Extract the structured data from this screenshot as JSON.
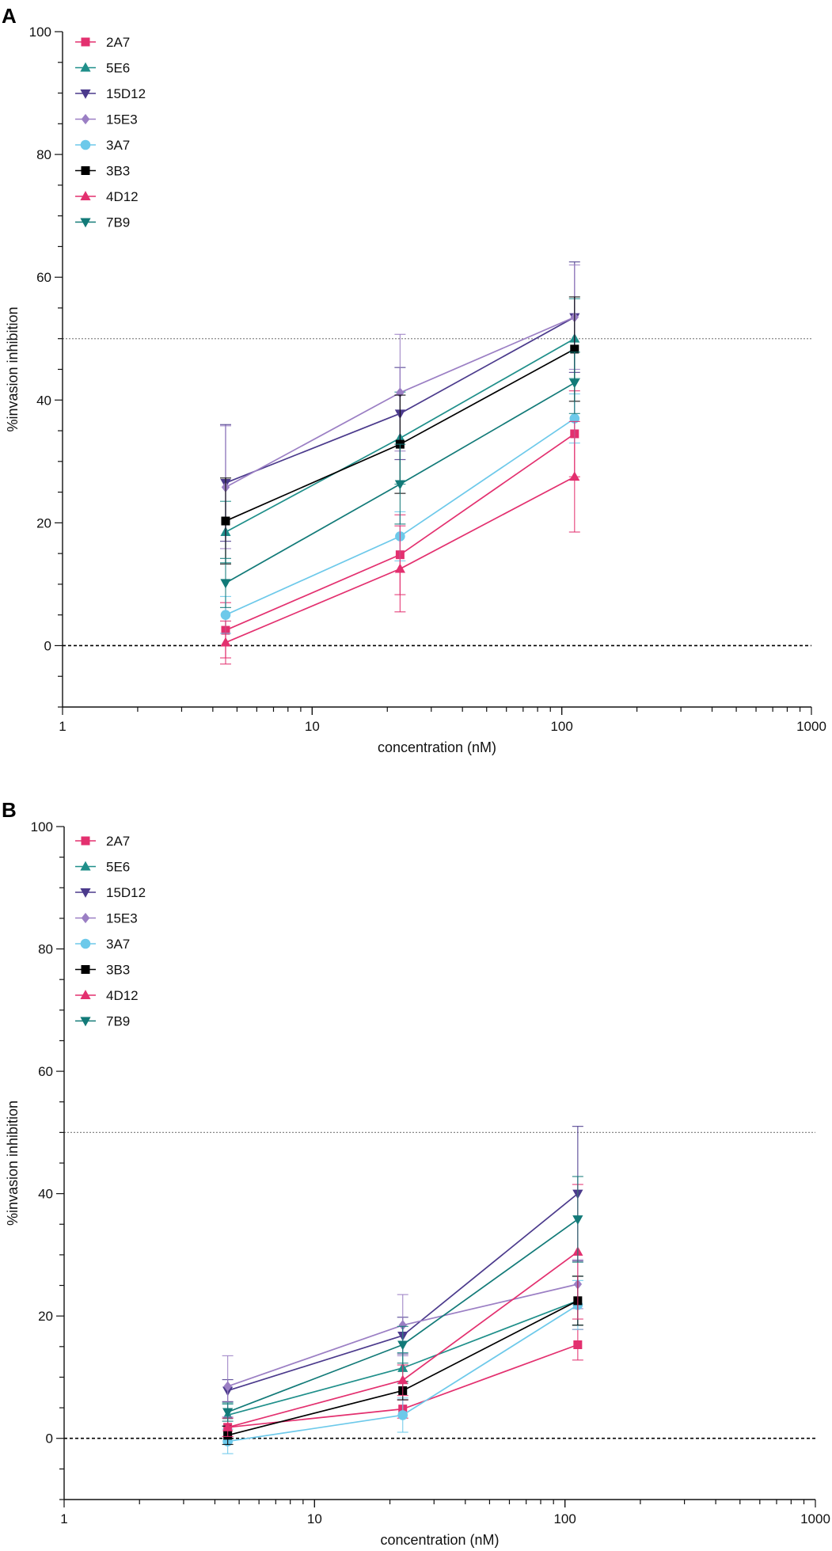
{
  "chart_data": [
    {
      "panel_label": "A",
      "type": "line",
      "x": [
        4.5,
        22.5,
        112.5
      ],
      "xscale": "log",
      "xlim": [
        1,
        1000
      ],
      "xticks": [
        "1",
        "10",
        "100",
        "1000"
      ],
      "ylim": [
        -10,
        100
      ],
      "yticks": [
        "0",
        "20",
        "40",
        "60",
        "80",
        "100"
      ],
      "xlabel": "concentration (nM)",
      "ylabel": "%invasion inhibition",
      "reference_lines": [
        {
          "y": 50,
          "style": "dotted",
          "color": "#888888"
        },
        {
          "y": 0,
          "style": "dashed",
          "color": "#000000"
        }
      ],
      "legend_position": "top-left",
      "series": [
        {
          "name": "2A7",
          "color": "#e3306f",
          "marker": "square",
          "values": [
            2.5,
            14.8,
            34.5
          ],
          "errors": [
            4.5,
            6.5,
            7.0
          ]
        },
        {
          "name": "5E6",
          "color": "#1f8f8a",
          "marker": "triangle",
          "values": [
            18.5,
            33.8,
            50.0
          ],
          "errors": [
            5.0,
            7.5,
            6.5
          ]
        },
        {
          "name": "15D12",
          "color": "#4b3a8c",
          "marker": "tri-down",
          "values": [
            26.5,
            37.8,
            53.5
          ],
          "errors": [
            9.5,
            7.5,
            9.0
          ]
        },
        {
          "name": "15E3",
          "color": "#9b7fc4",
          "marker": "diamond",
          "values": [
            25.8,
            41.2,
            53.5
          ],
          "errors": [
            10.0,
            9.5,
            8.5
          ]
        },
        {
          "name": "3A7",
          "color": "#6dc9ea",
          "marker": "circle",
          "values": [
            5.0,
            17.8,
            37.0
          ],
          "errors": [
            3.0,
            4.0,
            4.0
          ]
        },
        {
          "name": "3B3",
          "color": "#000000",
          "marker": "square",
          "values": [
            20.3,
            32.8,
            48.3
          ],
          "errors": [
            7.0,
            8.0,
            8.5
          ]
        },
        {
          "name": "4D12",
          "color": "#e3306f",
          "marker": "triangle",
          "values": [
            0.5,
            12.5,
            27.5
          ],
          "errors": [
            3.5,
            7.0,
            9.0
          ]
        },
        {
          "name": "7B9",
          "color": "#127a78",
          "marker": "tri-down",
          "values": [
            10.2,
            26.3,
            42.8
          ],
          "errors": [
            4.0,
            6.5,
            5.0
          ]
        }
      ]
    },
    {
      "panel_label": "B",
      "type": "line",
      "x": [
        4.5,
        22.5,
        112.5
      ],
      "xscale": "log",
      "xlim": [
        1,
        1000
      ],
      "xticks": [
        "1",
        "10",
        "100",
        "1000"
      ],
      "ylim": [
        -10,
        100
      ],
      "yticks": [
        "0",
        "20",
        "40",
        "60",
        "80",
        "100"
      ],
      "xlabel": "concentration (nM)",
      "ylabel": "%invasion inhibition",
      "reference_lines": [
        {
          "y": 50,
          "style": "dotted",
          "color": "#888888"
        },
        {
          "y": 0,
          "style": "dashed",
          "color": "#000000"
        }
      ],
      "legend_position": "top-left",
      "series": [
        {
          "name": "2A7",
          "color": "#e3306f",
          "marker": "square",
          "values": [
            1.8,
            4.8,
            15.3
          ],
          "errors": [
            1.5,
            1.5,
            2.5
          ]
        },
        {
          "name": "5E6",
          "color": "#1f8f8a",
          "marker": "triangle",
          "values": [
            3.8,
            11.5,
            22.5
          ],
          "errors": [
            1.8,
            2.5,
            4.0
          ]
        },
        {
          "name": "15D12",
          "color": "#4b3a8c",
          "marker": "tri-down",
          "values": [
            7.8,
            16.8,
            40.0
          ],
          "errors": [
            1.8,
            3.0,
            11.0
          ]
        },
        {
          "name": "15E3",
          "color": "#9b7fc4",
          "marker": "diamond",
          "values": [
            8.5,
            18.5,
            25.2
          ],
          "errors": [
            5.0,
            5.0,
            4.0
          ]
        },
        {
          "name": "3A7",
          "color": "#6dc9ea",
          "marker": "circle",
          "values": [
            -0.5,
            3.8,
            21.8
          ],
          "errors": [
            2.0,
            2.8,
            4.0
          ]
        },
        {
          "name": "3B3",
          "color": "#000000",
          "marker": "square",
          "values": [
            0.5,
            7.8,
            22.5
          ],
          "errors": [
            1.5,
            1.5,
            4.0
          ]
        },
        {
          "name": "4D12",
          "color": "#e3306f",
          "marker": "triangle",
          "values": [
            1.8,
            9.5,
            30.5
          ],
          "errors": [
            1.5,
            2.5,
            11.0
          ]
        },
        {
          "name": "7B9",
          "color": "#127a78",
          "marker": "tri-down",
          "values": [
            4.3,
            15.3,
            35.8
          ],
          "errors": [
            1.5,
            3.0,
            7.0
          ]
        }
      ]
    }
  ]
}
